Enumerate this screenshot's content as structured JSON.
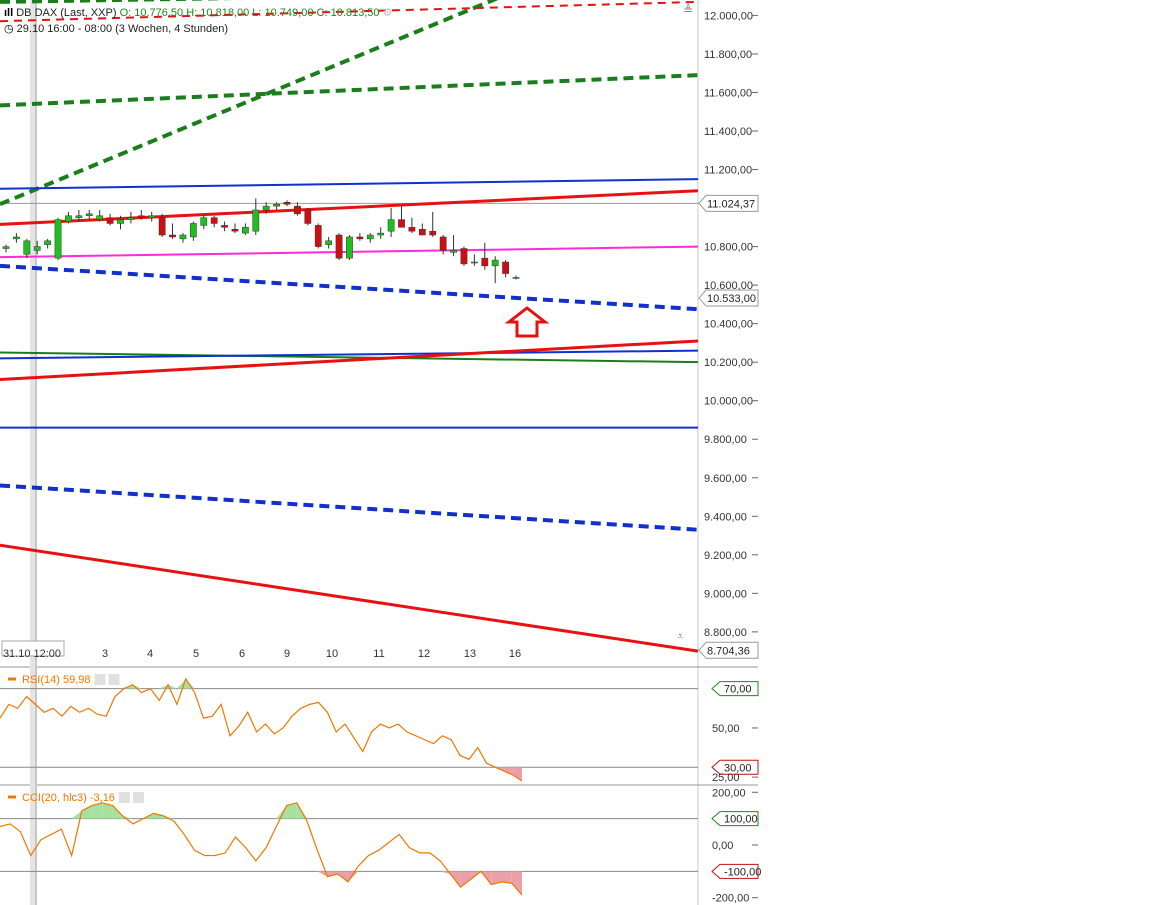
{
  "header": {
    "symbol": "DB DAX (Last, XXP)",
    "open": "O: 10.776,50",
    "high": "H: 10.818,00",
    "low": "L: 10.749,00",
    "close": "C: 10.813,50",
    "range": "29.10 16:00 - 08:00 (3 Wochen, 4 Stunden)"
  },
  "colors": {
    "up": "#1fbf1f",
    "down": "#cc1010",
    "rsi": "#f07800",
    "green_line": "#1a7f1a",
    "blue_line": "#1030d0",
    "red_line": "#e81010",
    "magenta_line": "#ff2ad8",
    "arrow": "#e81010"
  },
  "chart_data": {
    "type": "candlestick",
    "y_axis": {
      "range": [
        8680,
        12080
      ],
      "ticks": [
        "12.000,00",
        "11.800,00",
        "11.600,00",
        "11.400,00",
        "11.200,00",
        "10.800,00",
        "10.600,00",
        "10.400,00",
        "10.200,00",
        "10.000,00",
        "9.800,00",
        "9.600,00",
        "9.400,00",
        "9.200,00",
        "9.000,00",
        "8.800,00"
      ],
      "tick_values": [
        12000,
        11800,
        11600,
        11400,
        11200,
        10800,
        10600,
        10400,
        10200,
        10000,
        9800,
        9600,
        9400,
        9200,
        9000,
        8800
      ]
    },
    "x_labels": [
      "31.10 12:00",
      "3",
      "4",
      "5",
      "6",
      "9",
      "10",
      "11",
      "12",
      "13",
      "16"
    ],
    "price_tags": [
      {
        "text": "11.024,37",
        "value": 11024.37
      },
      {
        "text": "10.533,00",
        "value": 10533
      },
      {
        "text": "8.704,36",
        "value": 8704.36
      }
    ],
    "candles": [
      {
        "o": 10790,
        "h": 10810,
        "l": 10770,
        "c": 10800
      },
      {
        "o": 10840,
        "h": 10870,
        "l": 10820,
        "c": 10850
      },
      {
        "o": 10760,
        "h": 10840,
        "l": 10740,
        "c": 10830
      },
      {
        "o": 10780,
        "h": 10830,
        "l": 10760,
        "c": 10800
      },
      {
        "o": 10810,
        "h": 10840,
        "l": 10790,
        "c": 10830
      },
      {
        "o": 10740,
        "h": 10950,
        "l": 10730,
        "c": 10940
      },
      {
        "o": 10930,
        "h": 10980,
        "l": 10920,
        "c": 10960
      },
      {
        "o": 10950,
        "h": 10990,
        "l": 10930,
        "c": 10960
      },
      {
        "o": 10960,
        "h": 10990,
        "l": 10940,
        "c": 10970
      },
      {
        "o": 10940,
        "h": 10990,
        "l": 10930,
        "c": 10960
      },
      {
        "o": 10950,
        "h": 10970,
        "l": 10910,
        "c": 10920
      },
      {
        "o": 10920,
        "h": 10960,
        "l": 10890,
        "c": 10940
      },
      {
        "o": 10940,
        "h": 10980,
        "l": 10920,
        "c": 10950
      },
      {
        "o": 10960,
        "h": 10990,
        "l": 10940,
        "c": 10950
      },
      {
        "o": 10950,
        "h": 10980,
        "l": 10930,
        "c": 10960
      },
      {
        "o": 10950,
        "h": 10970,
        "l": 10850,
        "c": 10860
      },
      {
        "o": 10860,
        "h": 10920,
        "l": 10840,
        "c": 10850
      },
      {
        "o": 10840,
        "h": 10870,
        "l": 10820,
        "c": 10860
      },
      {
        "o": 10850,
        "h": 10930,
        "l": 10830,
        "c": 10920
      },
      {
        "o": 10910,
        "h": 10960,
        "l": 10890,
        "c": 10950
      },
      {
        "o": 10950,
        "h": 10960,
        "l": 10900,
        "c": 10920
      },
      {
        "o": 10910,
        "h": 10930,
        "l": 10880,
        "c": 10900
      },
      {
        "o": 10890,
        "h": 10920,
        "l": 10870,
        "c": 10880
      },
      {
        "o": 10870,
        "h": 10920,
        "l": 10860,
        "c": 10900
      },
      {
        "o": 10880,
        "h": 11050,
        "l": 10860,
        "c": 10990
      },
      {
        "o": 10990,
        "h": 11030,
        "l": 10970,
        "c": 11010
      },
      {
        "o": 11010,
        "h": 11030,
        "l": 10990,
        "c": 11020
      },
      {
        "o": 11030,
        "h": 11040,
        "l": 11010,
        "c": 11020
      },
      {
        "o": 11010,
        "h": 11030,
        "l": 10960,
        "c": 10970
      },
      {
        "o": 10990,
        "h": 11000,
        "l": 10910,
        "c": 10920
      },
      {
        "o": 10910,
        "h": 10920,
        "l": 10790,
        "c": 10800
      },
      {
        "o": 10810,
        "h": 10850,
        "l": 10790,
        "c": 10830
      },
      {
        "o": 10860,
        "h": 10870,
        "l": 10730,
        "c": 10740
      },
      {
        "o": 10740,
        "h": 10860,
        "l": 10730,
        "c": 10850
      },
      {
        "o": 10850,
        "h": 10870,
        "l": 10830,
        "c": 10840
      },
      {
        "o": 10840,
        "h": 10870,
        "l": 10820,
        "c": 10860
      },
      {
        "o": 10860,
        "h": 10900,
        "l": 10840,
        "c": 10870
      },
      {
        "o": 10880,
        "h": 11000,
        "l": 10850,
        "c": 10940
      },
      {
        "o": 10940,
        "h": 11010,
        "l": 10900,
        "c": 10900
      },
      {
        "o": 10900,
        "h": 10950,
        "l": 10870,
        "c": 10880
      },
      {
        "o": 10890,
        "h": 10920,
        "l": 10860,
        "c": 10860
      },
      {
        "o": 10880,
        "h": 10980,
        "l": 10850,
        "c": 10860
      },
      {
        "o": 10850,
        "h": 10860,
        "l": 10760,
        "c": 10780
      },
      {
        "o": 10770,
        "h": 10860,
        "l": 10750,
        "c": 10780
      },
      {
        "o": 10790,
        "h": 10800,
        "l": 10700,
        "c": 10710
      },
      {
        "o": 10720,
        "h": 10760,
        "l": 10700,
        "c": 10720
      },
      {
        "o": 10740,
        "h": 10820,
        "l": 10680,
        "c": 10700
      },
      {
        "o": 10700,
        "h": 10750,
        "l": 10610,
        "c": 10730
      },
      {
        "o": 10720,
        "h": 10730,
        "l": 10640,
        "c": 10660
      },
      {
        "o": 10640,
        "h": 10650,
        "l": 10630,
        "c": 10640
      }
    ],
    "trendlines": [
      {
        "kind": "green-dashed",
        "p1": [
          0,
          12070
        ],
        "p2": [
          1,
          12130
        ]
      },
      {
        "kind": "green-dashed",
        "p1": [
          0,
          11533
        ],
        "p2": [
          1,
          11690
        ]
      },
      {
        "kind": "green-dashed",
        "p1": [
          0,
          11020
        ],
        "p2": [
          1,
          12520
        ]
      },
      {
        "kind": "red-dashed",
        "p1": [
          0,
          11970
        ],
        "p2": [
          1,
          12070
        ]
      },
      {
        "kind": "blue",
        "p1": [
          0,
          11100
        ],
        "p2": [
          1,
          11150
        ]
      },
      {
        "kind": "red",
        "p1": [
          0,
          10915
        ],
        "p2": [
          1,
          11090
        ]
      },
      {
        "kind": "magenta",
        "p1": [
          0,
          10745
        ],
        "p2": [
          1,
          10800
        ]
      },
      {
        "kind": "blue-dashed",
        "p1": [
          0,
          10700
        ],
        "p2": [
          1,
          10475
        ]
      },
      {
        "kind": "green",
        "p1": [
          0,
          10250
        ],
        "p2": [
          1,
          10200
        ]
      },
      {
        "kind": "blue",
        "p1": [
          0,
          10220
        ],
        "p2": [
          1,
          10260
        ]
      },
      {
        "kind": "red",
        "p1": [
          0,
          10110
        ],
        "p2": [
          1,
          10310
        ]
      },
      {
        "kind": "blue",
        "p1": [
          0,
          9860
        ],
        "p2": [
          1,
          9860
        ]
      },
      {
        "kind": "blue-dashed",
        "p1": [
          0,
          9560
        ],
        "p2": [
          1,
          9330
        ]
      },
      {
        "kind": "red",
        "p1": [
          0,
          9250
        ],
        "p2": [
          1,
          8700
        ]
      }
    ],
    "rsi": {
      "label": "RSI(14)",
      "value": "59,98",
      "range": [
        22,
        80
      ],
      "ticks": [
        "50,00",
        "25,00"
      ],
      "tick_values": [
        50,
        25
      ],
      "levels": [
        {
          "text": "70,00",
          "value": 70
        },
        {
          "text": "30,00",
          "value": 30
        }
      ],
      "values": [
        55,
        62,
        60,
        66,
        62,
        58,
        60,
        56,
        61,
        58,
        60,
        57,
        56,
        66,
        70,
        72,
        68,
        70,
        64,
        72,
        62,
        75,
        68,
        55,
        56,
        62,
        46,
        51,
        58,
        48,
        52,
        47,
        50,
        56,
        60,
        62,
        63,
        58,
        48,
        52,
        45,
        38,
        48,
        52,
        50,
        52,
        48,
        46,
        44,
        42,
        46,
        44,
        36,
        34,
        40,
        32,
        30,
        28,
        26,
        23
      ]
    },
    "cci": {
      "label": "CCI(20, hlc3)",
      "value": "-3,16",
      "range": [
        -220,
        220
      ],
      "ticks": [
        "200,00",
        "0,00",
        "-200,00"
      ],
      "tick_values": [
        200,
        0,
        -200
      ],
      "levels": [
        {
          "text": "100,00",
          "value": 100
        },
        {
          "text": "-100,00",
          "value": -100
        }
      ],
      "values": [
        70,
        80,
        50,
        -40,
        20,
        40,
        60,
        -40,
        130,
        150,
        160,
        150,
        110,
        80,
        100,
        120,
        110,
        90,
        40,
        -20,
        -40,
        -40,
        -30,
        30,
        -10,
        -60,
        -10,
        70,
        150,
        160,
        90,
        -20,
        -120,
        -110,
        -140,
        -80,
        -40,
        -20,
        10,
        40,
        -10,
        -30,
        -30,
        -60,
        -110,
        -160,
        -130,
        -100,
        -150,
        -140,
        -145,
        -190
      ]
    }
  }
}
